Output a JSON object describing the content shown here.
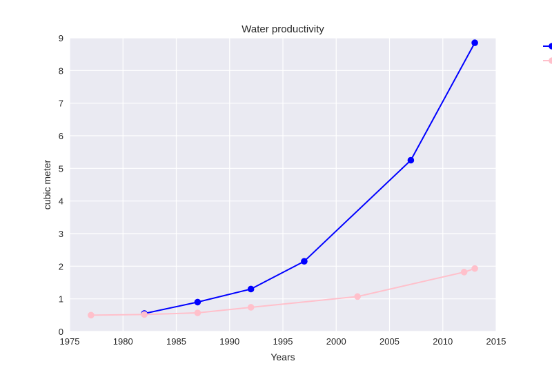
{
  "chart_data": {
    "type": "line",
    "title": "Water productivity",
    "xlabel": "Years",
    "ylabel": "cubic meter",
    "xlim": [
      1975,
      2015
    ],
    "ylim": [
      0,
      9
    ],
    "xticks": [
      1975,
      1980,
      1985,
      1990,
      1995,
      2000,
      2005,
      2010,
      2015
    ],
    "yticks": [
      0,
      1,
      2,
      3,
      4,
      5,
      6,
      7,
      8,
      9
    ],
    "grid": true,
    "legend_placement": "top-right, outside plot (cropped)",
    "series": [
      {
        "color": "#0000ff",
        "x": [
          1982,
          1987,
          1992,
          1997,
          2007,
          2013
        ],
        "y": [
          0.55,
          0.9,
          1.3,
          2.15,
          5.25,
          8.85
        ]
      },
      {
        "color": "#ffc0cb",
        "x": [
          1977,
          1982,
          1987,
          1992,
          2002,
          2012,
          2013
        ],
        "y": [
          0.5,
          0.52,
          0.57,
          0.74,
          1.07,
          1.82,
          1.93
        ]
      }
    ]
  }
}
